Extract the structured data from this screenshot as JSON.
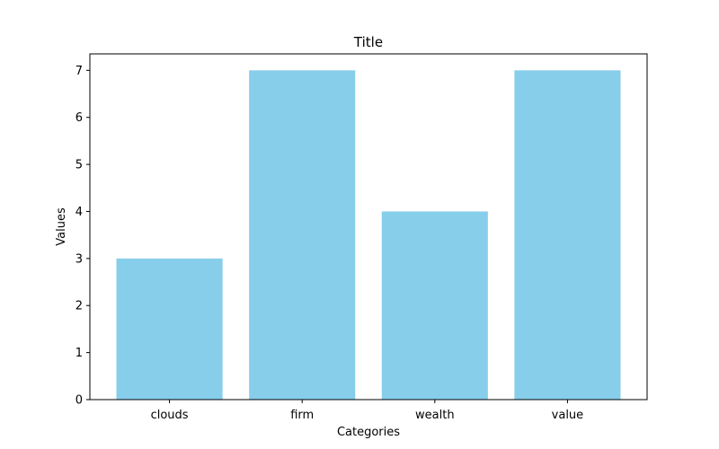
{
  "chart_data": {
    "type": "bar",
    "title": "Title",
    "xlabel": "Categories",
    "ylabel": "Values",
    "categories": [
      "clouds",
      "firm",
      "wealth",
      "value"
    ],
    "values": [
      3,
      7,
      4,
      7
    ],
    "ylim": [
      0,
      7.35
    ],
    "yticks": [
      0,
      1,
      2,
      3,
      4,
      5,
      6,
      7
    ],
    "grid": false,
    "legend": "none",
    "bar_color": "#87ceeb",
    "axis_color": "#000000"
  }
}
